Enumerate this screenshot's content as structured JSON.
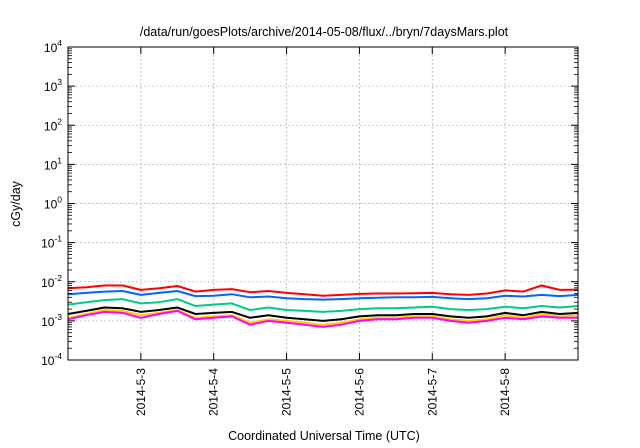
{
  "chart_data": {
    "type": "line",
    "title": "/data/run/goesPlots/archive/2014-05-08/flux/../bryn/7daysMars.plot",
    "xlabel": "Coordinated Universal Time (UTC)",
    "ylabel": "cGy/day",
    "yscale": "log",
    "ylim": [
      0.0001,
      10000
    ],
    "y_ticks": [
      {
        "value": 0.0001,
        "base": "10",
        "exp": "-4"
      },
      {
        "value": 0.001,
        "base": "10",
        "exp": "-3"
      },
      {
        "value": 0.01,
        "base": "10",
        "exp": "-2"
      },
      {
        "value": 0.1,
        "base": "10",
        "exp": "-1"
      },
      {
        "value": 1,
        "base": "10",
        "exp": "0"
      },
      {
        "value": 10,
        "base": "10",
        "exp": "1"
      },
      {
        "value": 100,
        "base": "10",
        "exp": "2"
      },
      {
        "value": 1000,
        "base": "10",
        "exp": "3"
      },
      {
        "value": 10000,
        "base": "10",
        "exp": "4"
      }
    ],
    "xlim": [
      "2014-05-02 00:00",
      "2014-05-09 00:00"
    ],
    "x_ticks": [
      "2014-5-3",
      "2014-5-4",
      "2014-5-5",
      "2014-5-6",
      "2014-5-7",
      "2014-5-8"
    ],
    "x_tick_dates": [
      "2014-05-03",
      "2014-05-04",
      "2014-05-05",
      "2014-05-06",
      "2014-05-07",
      "2014-05-08"
    ],
    "grid": true,
    "x": [
      "2014-05-02 00:00",
      "2014-05-02 06:00",
      "2014-05-02 12:00",
      "2014-05-02 18:00",
      "2014-05-03 00:00",
      "2014-05-03 06:00",
      "2014-05-03 12:00",
      "2014-05-03 18:00",
      "2014-05-04 00:00",
      "2014-05-04 06:00",
      "2014-05-04 12:00",
      "2014-05-04 18:00",
      "2014-05-05 00:00",
      "2014-05-05 06:00",
      "2014-05-05 12:00",
      "2014-05-05 18:00",
      "2014-05-06 00:00",
      "2014-05-06 06:00",
      "2014-05-06 12:00",
      "2014-05-06 18:00",
      "2014-05-07 00:00",
      "2014-05-07 06:00",
      "2014-05-07 12:00",
      "2014-05-07 18:00",
      "2014-05-08 00:00",
      "2014-05-08 06:00",
      "2014-05-08 12:00",
      "2014-05-08 18:00",
      "2014-05-09 00:00"
    ],
    "series": [
      {
        "color": "#ff0000",
        "values": [
          0.0068,
          0.0072,
          0.008,
          0.008,
          0.0062,
          0.0068,
          0.0078,
          0.0056,
          0.0062,
          0.0065,
          0.0054,
          0.0058,
          0.0052,
          0.0048,
          0.0044,
          0.0046,
          0.0049,
          0.005,
          0.005,
          0.0051,
          0.0052,
          0.0048,
          0.0046,
          0.005,
          0.006,
          0.0056,
          0.008,
          0.0062,
          0.0063
        ]
      },
      {
        "color": "#0066ff",
        "values": [
          0.0048,
          0.0052,
          0.0056,
          0.0058,
          0.0046,
          0.0052,
          0.0058,
          0.0043,
          0.0044,
          0.0048,
          0.004,
          0.0042,
          0.0038,
          0.0036,
          0.0035,
          0.0036,
          0.0038,
          0.0039,
          0.004,
          0.004,
          0.0041,
          0.0038,
          0.0036,
          0.0038,
          0.0044,
          0.0042,
          0.0046,
          0.0043,
          0.0046
        ]
      },
      {
        "color": "#00cc88",
        "values": [
          0.0026,
          0.003,
          0.0034,
          0.0036,
          0.0028,
          0.003,
          0.0036,
          0.0024,
          0.0026,
          0.0028,
          0.0019,
          0.0022,
          0.0019,
          0.0018,
          0.0017,
          0.0018,
          0.002,
          0.0021,
          0.0021,
          0.0022,
          0.0023,
          0.002,
          0.0019,
          0.002,
          0.0023,
          0.0021,
          0.0024,
          0.0022,
          0.0024
        ]
      },
      {
        "color": "#000000",
        "values": [
          0.0015,
          0.0018,
          0.0022,
          0.0021,
          0.0017,
          0.0019,
          0.0022,
          0.0015,
          0.0016,
          0.0017,
          0.0012,
          0.0014,
          0.0012,
          0.0011,
          0.001,
          0.0011,
          0.0013,
          0.0014,
          0.0014,
          0.0015,
          0.0015,
          0.0013,
          0.0012,
          0.0013,
          0.0016,
          0.0014,
          0.0017,
          0.0015,
          0.0016
        ]
      },
      {
        "color": "#ffcc00",
        "values": [
          0.0012,
          0.0015,
          0.0019,
          0.0018,
          0.0014,
          0.0016,
          0.0019,
          0.0012,
          0.0013,
          0.0014,
          0.0009,
          0.0011,
          0.001,
          0.0009,
          0.0008,
          0.0009,
          0.0011,
          0.0012,
          0.0012,
          0.0013,
          0.0013,
          0.0011,
          0.001,
          0.0011,
          0.0014,
          0.0012,
          0.0015,
          0.0013,
          0.0014
        ]
      },
      {
        "color": "#ff00ff",
        "values": [
          0.0011,
          0.0014,
          0.0017,
          0.0016,
          0.0012,
          0.0015,
          0.0018,
          0.0011,
          0.0012,
          0.0013,
          0.0008,
          0.001,
          0.0009,
          0.0008,
          0.0007,
          0.0008,
          0.001,
          0.0011,
          0.0011,
          0.0012,
          0.0012,
          0.001,
          0.0009,
          0.001,
          0.0012,
          0.0011,
          0.0013,
          0.0012,
          0.0012
        ]
      }
    ]
  }
}
